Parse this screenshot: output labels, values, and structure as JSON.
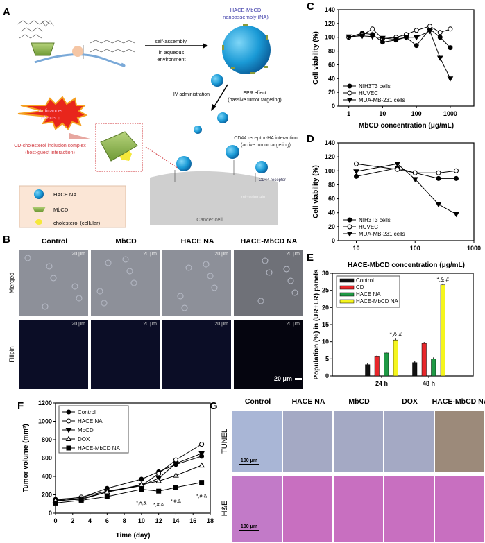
{
  "panel_labels": [
    "A",
    "B",
    "C",
    "D",
    "E",
    "F",
    "G"
  ],
  "schematic": {
    "na_title_1": "HACE-MbCD",
    "na_title_2": "nanoassembly (NA)",
    "self_assembly": "self-assembly",
    "aqueous_1": "in aqueous",
    "aqueous_2": "environment",
    "iv": "IV administration",
    "epr_1": "EPR effect",
    "epr_2": "(passive tumor targeting)",
    "anticancer_1": "Anticancer",
    "anticancer_2": "effects ↑",
    "inclusion_1": "CD-cholesterol inclusion complex",
    "inclusion_2": "(host-guest interaction)",
    "cd44_1": "CD44 receptor-HA interaction",
    "cd44_2": "(active tumor targeting)",
    "cd44_receptor": "CD44 receptor",
    "microdomain": "microdomain",
    "cancer_cell": "Cancer cell",
    "legend": [
      "HACE NA",
      "MbCD",
      "cholesterol (cellular)"
    ],
    "colors": {
      "nanoparticle": "#1a9ad6",
      "mbcd": "#8fb84a",
      "cholesterol": "#f5e83a",
      "burst": "#e8261c",
      "inclusion_text": "#d0343a",
      "title_text": "#3b3aa8"
    }
  },
  "microscopy": {
    "columns": [
      "Control",
      "MbCD",
      "HACE NA",
      "HACE-MbCD NA"
    ],
    "rows": [
      "Merged",
      "Filipin"
    ],
    "scale_bar": "20 μm",
    "tile_scale": "20 μm"
  },
  "histology": {
    "columns": [
      "Control",
      "HACE NA",
      "MbCD",
      "DOX",
      "HACE-MbCD NA"
    ],
    "rows": [
      "TUNEL",
      "H&E"
    ],
    "scale_bar": "100 μm"
  },
  "chart_data": [
    {
      "id": "C",
      "type": "line",
      "xscale": "log",
      "xlabel": "MbCD concentration (μg/mL)",
      "ylabel": "Cell viability (%)",
      "xticks": [
        1,
        10,
        100,
        1000
      ],
      "yticks": [
        0,
        20,
        40,
        60,
        80,
        100,
        120,
        140
      ],
      "xlim": [
        0.5,
        5000
      ],
      "ylim": [
        0,
        140
      ],
      "legend_position": "bottom-left",
      "x": [
        1,
        2.5,
        5,
        10,
        25,
        50,
        100,
        250,
        500,
        1000
      ],
      "series": [
        {
          "name": "NIH3T3 cells",
          "marker": "filled-circle",
          "values": [
            100,
            106,
            104,
            93,
            96,
            100,
            88,
            112,
            100,
            85
          ]
        },
        {
          "name": "HUVEC",
          "marker": "open-circle",
          "values": [
            100,
            103,
            112,
            98,
            100,
            104,
            110,
            116,
            107,
            112
          ]
        },
        {
          "name": "MDA-MB-231 cells",
          "marker": "filled-triangle-down",
          "values": [
            101,
            102,
            101,
            99,
            97,
            100,
            100,
            109,
            70,
            40
          ]
        }
      ]
    },
    {
      "id": "D",
      "type": "line",
      "xscale": "log",
      "xlabel": "HACE-MbCD concentration (μg/mL)",
      "ylabel": "Cell viability (%)",
      "xticks": [
        10,
        100,
        1000
      ],
      "yticks": [
        0,
        20,
        40,
        60,
        80,
        100,
        120,
        140
      ],
      "xlim": [
        5,
        1000
      ],
      "ylim": [
        0,
        140
      ],
      "legend_position": "bottom-left",
      "x": [
        10,
        50,
        100,
        250,
        500
      ],
      "series": [
        {
          "name": "NIH3T3 cells",
          "marker": "filled-circle",
          "values": [
            92,
            104,
            97,
            89,
            89
          ]
        },
        {
          "name": "HUVEC",
          "marker": "open-circle",
          "values": [
            110,
            102,
            97,
            97,
            100
          ]
        },
        {
          "name": "MDA-MB-231 cells",
          "marker": "filled-triangle-down",
          "values": [
            99,
            110,
            88,
            52,
            38
          ]
        }
      ]
    },
    {
      "id": "E",
      "type": "bar",
      "categories": [
        "24 h",
        "48 h"
      ],
      "ylabel": "Population (%) in (UR+LR) panels",
      "yticks": [
        0,
        5,
        10,
        15,
        20,
        25,
        30
      ],
      "ylim": [
        0,
        30
      ],
      "legend_position": "top-left",
      "series": [
        {
          "name": "Control",
          "color": "#111111",
          "values": [
            3.3,
            3.9
          ]
        },
        {
          "name": "CD",
          "color": "#e8262a",
          "values": [
            5.6,
            9.5
          ]
        },
        {
          "name": "HACE NA",
          "color": "#1f9a45",
          "values": [
            6.7,
            5.0
          ]
        },
        {
          "name": "HACE-MbCD NA",
          "color": "#f5f51e",
          "values": [
            10.5,
            26.6
          ]
        }
      ],
      "annotations": [
        "*,&,#",
        "*,&,#"
      ]
    },
    {
      "id": "F",
      "type": "line",
      "xlabel": "Time (day)",
      "ylabel": "Tumor volume (mm³)",
      "xticks": [
        0,
        2,
        4,
        6,
        8,
        10,
        12,
        14,
        16,
        18
      ],
      "yticks": [
        0,
        200,
        400,
        600,
        800,
        1000,
        1200
      ],
      "xlim": [
        0,
        18
      ],
      "ylim": [
        0,
        1200
      ],
      "legend_position": "top-left",
      "x": [
        0,
        3,
        6,
        10,
        12,
        14,
        17
      ],
      "series": [
        {
          "name": "Control",
          "marker": "filled-circle",
          "values": [
            150,
            170,
            270,
            370,
            450,
            530,
            620
          ]
        },
        {
          "name": "HACE NA",
          "marker": "open-circle",
          "values": [
            140,
            175,
            240,
            300,
            430,
            580,
            750
          ]
        },
        {
          "name": "MbCD",
          "marker": "filled-triangle-down",
          "values": [
            130,
            160,
            230,
            300,
            380,
            540,
            650
          ]
        },
        {
          "name": "DOX",
          "marker": "open-triangle-up",
          "values": [
            140,
            150,
            230,
            310,
            350,
            410,
            520
          ]
        },
        {
          "name": "HACE-MbCD NA",
          "marker": "filled-square",
          "values": [
            110,
            140,
            180,
            260,
            240,
            280,
            335
          ]
        }
      ],
      "annotations": [
        {
          "x": 10,
          "text": "*,#,&"
        },
        {
          "x": 12,
          "text": "*,#,&"
        },
        {
          "x": 14,
          "text": "*,#,&"
        },
        {
          "x": 17,
          "text": "*,#,&"
        }
      ]
    }
  ]
}
